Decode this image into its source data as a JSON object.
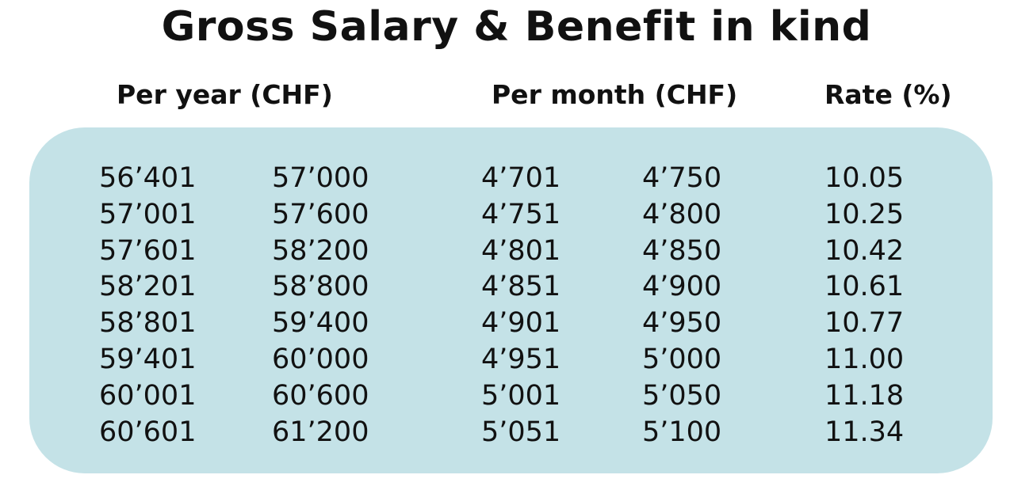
{
  "title": "Gross Salary & Benefit in kind",
  "headers": {
    "per_year": "Per year (CHF)",
    "per_month": "Per month (CHF)",
    "rate": "Rate (%)"
  },
  "rows": [
    {
      "year_from": "56’401",
      "year_to": "57’000",
      "month_from": "4’701",
      "month_to": "4’750",
      "rate": "10.05"
    },
    {
      "year_from": "57’001",
      "year_to": "57’600",
      "month_from": "4’751",
      "month_to": "4’800",
      "rate": "10.25"
    },
    {
      "year_from": "57’601",
      "year_to": "58’200",
      "month_from": "4’801",
      "month_to": "4’850",
      "rate": "10.42"
    },
    {
      "year_from": "58’201",
      "year_to": "58’800",
      "month_from": "4’851",
      "month_to": "4’900",
      "rate": "10.61"
    },
    {
      "year_from": "58’801",
      "year_to": "59’400",
      "month_from": "4’901",
      "month_to": "4’950",
      "rate": "10.77"
    },
    {
      "year_from": "59’401",
      "year_to": "60’000",
      "month_from": "4’951",
      "month_to": "5’000",
      "rate": "11.00"
    },
    {
      "year_from": "60’001",
      "year_to": "60’600",
      "month_from": "5’001",
      "month_to": "5’050",
      "rate": "11.18"
    },
    {
      "year_from": "60’601",
      "year_to": "61’200",
      "month_from": "5’051",
      "month_to": "5’100",
      "rate": "11.34"
    }
  ],
  "colors": {
    "panel_background": "#c4e2e7",
    "text": "#111111"
  }
}
